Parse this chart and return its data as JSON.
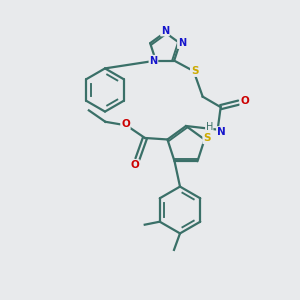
{
  "bg_color": "#e8eaec",
  "atom_colors": {
    "C": "#3a7068",
    "N": "#1515cc",
    "S": "#ccaa00",
    "O": "#cc0000",
    "H": "#3a7068"
  },
  "bond_color": "#3a7068",
  "line_width": 1.6
}
